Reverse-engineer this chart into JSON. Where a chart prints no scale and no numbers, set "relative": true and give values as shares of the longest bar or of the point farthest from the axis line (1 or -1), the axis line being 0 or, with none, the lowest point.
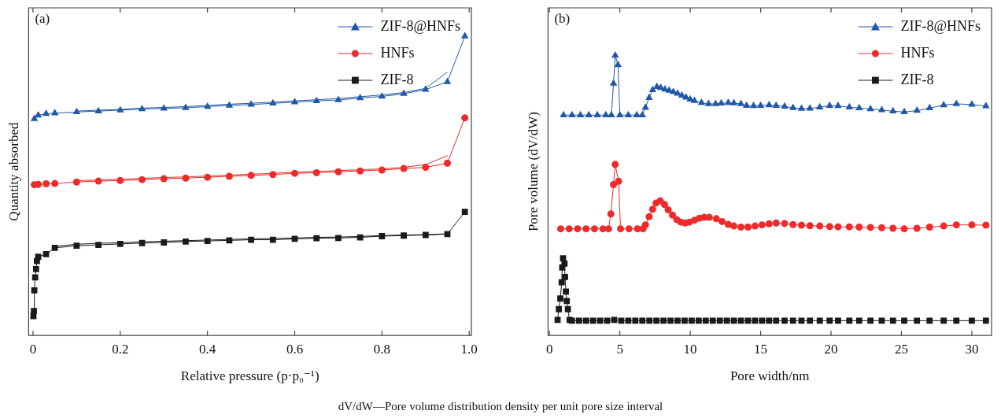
{
  "chart_data": [
    {
      "type": "line",
      "annotations": [
        "(a)"
      ],
      "xlabel": "Relative pressure (p·p₀⁻¹)",
      "ylabel": "Quantity absorbed",
      "xlim": [
        -0.01,
        1.005
      ],
      "xticks": [
        0,
        0.2,
        0.4,
        0.6,
        0.8,
        {
          "value": 1,
          "label": "1.0"
        }
      ],
      "relative": true,
      "tick_labels": "x",
      "legend": "top right",
      "line_style": "solid",
      "series": [
        {
          "name": "ZIF-8@HNFs",
          "color": "#2159a8",
          "marker": "triangle",
          "x": [
            0.003,
            0.012,
            0.03,
            0.05,
            0.1,
            0.15,
            0.2,
            0.25,
            0.3,
            0.35,
            0.4,
            0.45,
            0.5,
            0.55,
            0.6,
            0.65,
            0.7,
            0.75,
            0.8,
            0.85,
            0.9,
            0.95,
            0.99
          ],
          "values": [
            0.724,
            0.736,
            0.741,
            0.743,
            0.747,
            0.75,
            0.753,
            0.757,
            0.759,
            0.761,
            0.765,
            0.769,
            0.772,
            0.776,
            0.78,
            0.784,
            0.787,
            0.794,
            0.799,
            0.808,
            0.822,
            0.848,
            1.0
          ]
        },
        {
          "color": "#2159a8",
          "marker": "none",
          "x": [
            0.1,
            0.15,
            0.2,
            0.25,
            0.3,
            0.35,
            0.4,
            0.45,
            0.5,
            0.55,
            0.6,
            0.65,
            0.7,
            0.75,
            0.8,
            0.85,
            0.9,
            0.95
          ],
          "values": [
            0.75,
            0.753,
            0.756,
            0.76,
            0.762,
            0.765,
            0.769,
            0.773,
            0.776,
            0.78,
            0.784,
            0.788,
            0.792,
            0.798,
            0.804,
            0.812,
            0.826,
            0.88
          ]
        },
        {
          "name": "HNFs",
          "color": "#ee2a2a",
          "marker": "circle",
          "x": [
            0.003,
            0.012,
            0.03,
            0.05,
            0.1,
            0.15,
            0.2,
            0.25,
            0.3,
            0.35,
            0.4,
            0.45,
            0.5,
            0.55,
            0.6,
            0.65,
            0.7,
            0.75,
            0.8,
            0.85,
            0.9,
            0.95,
            0.99
          ],
          "values": [
            0.504,
            0.505,
            0.507,
            0.508,
            0.513,
            0.516,
            0.518,
            0.521,
            0.524,
            0.526,
            0.529,
            0.532,
            0.535,
            0.538,
            0.542,
            0.544,
            0.547,
            0.55,
            0.553,
            0.558,
            0.562,
            0.576,
            0.727
          ]
        },
        {
          "color": "#ee2a2a",
          "marker": "none",
          "x": [
            0.1,
            0.15,
            0.2,
            0.25,
            0.3,
            0.35,
            0.4,
            0.45,
            0.5,
            0.55,
            0.6,
            0.65,
            0.7,
            0.75,
            0.8,
            0.85,
            0.9,
            0.95
          ],
          "values": [
            0.517,
            0.52,
            0.522,
            0.525,
            0.528,
            0.53,
            0.533,
            0.536,
            0.539,
            0.542,
            0.546,
            0.548,
            0.551,
            0.554,
            0.557,
            0.562,
            0.571,
            0.601
          ]
        },
        {
          "name": "ZIF-8",
          "color": "#1a1a1a",
          "marker": "square",
          "x": [
            0.001,
            0.002,
            0.003,
            0.005,
            0.007,
            0.009,
            0.012,
            0.03,
            0.05,
            0.1,
            0.15,
            0.2,
            0.25,
            0.3,
            0.35,
            0.4,
            0.45,
            0.5,
            0.55,
            0.6,
            0.65,
            0.7,
            0.75,
            0.8,
            0.85,
            0.9,
            0.95,
            0.99
          ],
          "values": [
            0.065,
            0.082,
            0.151,
            0.194,
            0.222,
            0.249,
            0.263,
            0.272,
            0.293,
            0.3,
            0.303,
            0.306,
            0.309,
            0.311,
            0.314,
            0.316,
            0.318,
            0.32,
            0.32,
            0.323,
            0.325,
            0.326,
            0.328,
            0.332,
            0.334,
            0.336,
            0.339,
            0.413
          ]
        },
        {
          "color": "#1a1a1a",
          "marker": "none",
          "x": [
            0.05,
            0.1,
            0.15,
            0.2,
            0.25,
            0.3,
            0.35,
            0.4,
            0.45,
            0.5,
            0.55,
            0.6,
            0.65,
            0.7,
            0.75,
            0.8,
            0.85,
            0.9,
            0.95
          ],
          "values": [
            0.298,
            0.305,
            0.308,
            0.31,
            0.313,
            0.315,
            0.317,
            0.319,
            0.321,
            0.323,
            0.324,
            0.326,
            0.328,
            0.329,
            0.331,
            0.334,
            0.336,
            0.337,
            0.34
          ]
        }
      ]
    },
    {
      "type": "line",
      "annotations": [
        "(b)",
        "dV/dW—Pore volume distribution density per unit pore size interval"
      ],
      "xlabel": "Pore width/nm",
      "ylabel": "Pore volume (dV/dW)",
      "xlim": [
        -0.1,
        31.4
      ],
      "xticks": [
        0,
        5,
        10,
        15,
        20,
        25,
        30
      ],
      "relative": true,
      "tick_labels": "x",
      "legend": "top right",
      "line_style": "solid",
      "series": [
        {
          "name": "ZIF-8@HNFs",
          "color": "#2159a8",
          "marker": "triangle",
          "x": [
            1.0,
            1.6,
            2.2,
            2.8,
            3.4,
            4.0,
            4.4,
            4.55,
            4.67,
            4.87,
            5.0,
            5.6,
            6.2,
            6.6,
            6.82,
            7.08,
            7.33,
            7.63,
            7.9,
            8.2,
            8.5,
            8.8,
            9.1,
            9.4,
            9.7,
            10.0,
            10.3,
            10.8,
            11.3,
            11.8,
            12.2,
            12.7,
            13.1,
            13.6,
            14.0,
            14.5,
            15.0,
            15.6,
            16.1,
            16.7,
            17.3,
            17.9,
            18.5,
            19.2,
            19.9,
            20.5,
            21.3,
            22.0,
            22.8,
            23.6,
            24.4,
            25.2,
            26.1,
            27.0,
            28.0,
            28.9,
            30.0,
            31.0
          ],
          "values": [
            0.787,
            0.787,
            0.787,
            0.787,
            0.787,
            0.787,
            0.787,
            0.9,
            1.0,
            0.966,
            0.787,
            0.787,
            0.787,
            0.787,
            0.814,
            0.849,
            0.877,
            0.888,
            0.885,
            0.879,
            0.875,
            0.87,
            0.864,
            0.857,
            0.85,
            0.843,
            0.838,
            0.831,
            0.827,
            0.827,
            0.829,
            0.831,
            0.83,
            0.827,
            0.821,
            0.82,
            0.821,
            0.823,
            0.821,
            0.818,
            0.813,
            0.81,
            0.811,
            0.815,
            0.821,
            0.82,
            0.815,
            0.812,
            0.809,
            0.805,
            0.801,
            0.798,
            0.803,
            0.812,
            0.823,
            0.827,
            0.825,
            0.819
          ]
        },
        {
          "name": "HNFs",
          "color": "#ee2a2a",
          "marker": "circle",
          "x": [
            0.8,
            1.4,
            2.0,
            2.6,
            3.2,
            3.8,
            4.2,
            4.36,
            4.55,
            4.67,
            4.91,
            5.05,
            5.65,
            6.25,
            6.65,
            6.82,
            7.08,
            7.33,
            7.57,
            7.87,
            8.17,
            8.43,
            8.74,
            9.04,
            9.34,
            9.64,
            9.94,
            10.3,
            10.65,
            10.99,
            11.35,
            11.85,
            12.26,
            12.7,
            13.1,
            13.6,
            14.1,
            14.6,
            15.1,
            15.6,
            16.1,
            16.7,
            17.3,
            17.9,
            18.5,
            19.2,
            19.9,
            20.5,
            21.3,
            22.0,
            22.8,
            23.6,
            24.4,
            25.2,
            26.1,
            27.0,
            28.0,
            28.9,
            30.0,
            31.0
          ],
          "values": [
            0.381,
            0.381,
            0.381,
            0.381,
            0.381,
            0.381,
            0.381,
            0.434,
            0.539,
            0.611,
            0.551,
            0.381,
            0.381,
            0.381,
            0.381,
            0.395,
            0.424,
            0.451,
            0.473,
            0.481,
            0.468,
            0.449,
            0.43,
            0.414,
            0.405,
            0.402,
            0.405,
            0.412,
            0.419,
            0.422,
            0.422,
            0.417,
            0.407,
            0.397,
            0.391,
            0.387,
            0.387,
            0.391,
            0.395,
            0.399,
            0.402,
            0.4,
            0.396,
            0.394,
            0.392,
            0.391,
            0.389,
            0.388,
            0.388,
            0.387,
            0.386,
            0.385,
            0.383,
            0.381,
            0.383,
            0.387,
            0.391,
            0.395,
            0.395,
            0.394
          ]
        },
        {
          "name": "ZIF-8",
          "color": "#1a1a1a",
          "marker": "square",
          "x": [
            0.58,
            0.67,
            0.77,
            0.87,
            0.91,
            0.97,
            1.07,
            1.11,
            1.17,
            1.23,
            1.31,
            1.43,
            1.6,
            2.1,
            2.6,
            3.1,
            3.6,
            4.1,
            4.6,
            5.1,
            5.6,
            6.1,
            6.6,
            7.1,
            7.6,
            8.1,
            8.6,
            9.1,
            9.6,
            10.1,
            10.6,
            11.1,
            11.6,
            12.1,
            12.6,
            13.1,
            13.6,
            14.1,
            14.6,
            15.1,
            15.6,
            16.1,
            16.7,
            17.3,
            17.9,
            18.5,
            19.2,
            19.9,
            20.5,
            21.3,
            22.0,
            22.8,
            23.6,
            24.4,
            25.2,
            26.1,
            27.0,
            28.0,
            28.9,
            30.0,
            31.0
          ],
          "values": [
            0.056,
            0.094,
            0.132,
            0.19,
            0.243,
            0.276,
            0.257,
            0.209,
            0.157,
            0.123,
            0.094,
            0.056,
            0.053,
            0.053,
            0.053,
            0.053,
            0.053,
            0.053,
            0.056,
            0.053,
            0.053,
            0.053,
            0.053,
            0.053,
            0.053,
            0.053,
            0.053,
            0.053,
            0.053,
            0.053,
            0.053,
            0.053,
            0.053,
            0.053,
            0.053,
            0.053,
            0.053,
            0.053,
            0.053,
            0.053,
            0.053,
            0.053,
            0.053,
            0.053,
            0.053,
            0.053,
            0.053,
            0.053,
            0.053,
            0.053,
            0.053,
            0.053,
            0.053,
            0.053,
            0.053,
            0.053,
            0.053,
            0.053,
            0.053,
            0.053,
            0.053
          ]
        }
      ]
    }
  ]
}
